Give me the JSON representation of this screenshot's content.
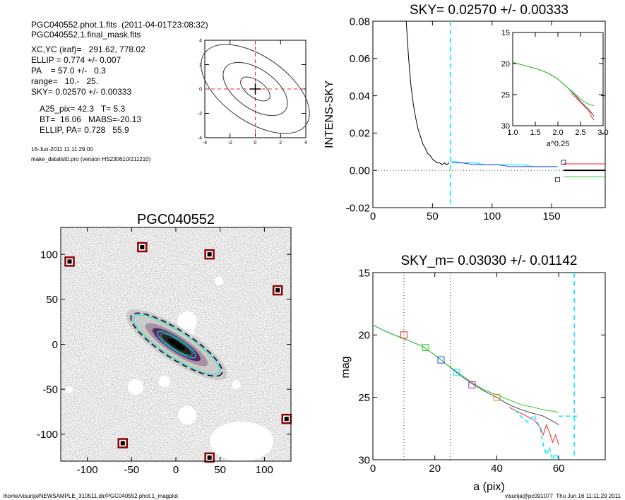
{
  "info": {
    "line1": "PGC040552.phot.1.fits  (2011-04-01T23:08:32)",
    "line2": "PGC040552.1.final_mask.fits",
    "line3": "XC,YC (iraf)=   291.62, 778.02",
    "line4": "ELLIP = 0.774 +/- 0.007",
    "line5": "PA    = 57.0 +/-   0.3",
    "line6": "range=   10.-   25.",
    "line7": "SKY= 0.02570 +/- 0.00333",
    "line8": "A25_pix= 42.3   T= 5.3",
    "line9": "BT=  16.06   MABS=-20.13",
    "line10": "ELLIP, PA= 0.728   55.9",
    "date": "16-Jun-2011 11:11:29.00",
    "program": "make_datalist0.pro (version HS230610/211210)"
  },
  "footer": {
    "left": "/home/visurija/NEWSAMPLE_310511.dir/PGC040552.phot.1_magplot",
    "right": "visurija@pc091077  Thu Jun 16 11:11:29 2011"
  },
  "colors": {
    "cyan": "#00e5ff",
    "red": "#ff2020",
    "green": "#22cc22",
    "blue": "#2244ff",
    "gray": "#444444",
    "dark_red": "#8b0000"
  },
  "chart_data": [
    {
      "type": "line",
      "id": "sky_profile",
      "title": "SKY= 0.02570 +/- 0.00333",
      "xlabel": "",
      "ylabel": "INTENS-SKY",
      "xlim": [
        0,
        195
      ],
      "ylim": [
        -0.02,
        0.08
      ],
      "xticks": [
        "0",
        "50",
        "100",
        "150"
      ],
      "yticks": [
        "-0.02",
        "0.00",
        "0.02",
        "0.04",
        "0.06",
        "0.08"
      ],
      "vline_cyan_x": 65,
      "series": [
        {
          "color": "black",
          "x": [
            28,
            30,
            32,
            34,
            36,
            38,
            40,
            42,
            44,
            46,
            48,
            50,
            52,
            54,
            56,
            58,
            60,
            62,
            64
          ],
          "y": [
            0.08,
            0.06,
            0.045,
            0.035,
            0.028,
            0.022,
            0.018,
            0.014,
            0.012,
            0.009,
            0.008,
            0.006,
            0.005,
            0.004,
            0.004,
            0.003,
            0.004,
            0.003,
            0.004
          ]
        },
        {
          "color": "cyan",
          "x": [
            66,
            75,
            85,
            95,
            105,
            115,
            125,
            135,
            145,
            155
          ],
          "y": [
            0.005,
            0.004,
            0.004,
            0.003,
            0.003,
            0.003,
            0.003,
            0.002,
            0.002,
            0.002
          ]
        },
        {
          "color": "blue",
          "x": [
            66,
            75,
            85,
            95,
            105,
            115,
            125,
            135,
            145,
            155
          ],
          "y": [
            0.004,
            0.004,
            0.003,
            0.003,
            0.003,
            0.002,
            0.002,
            0.002,
            0.002,
            0.002
          ]
        },
        {
          "color": "red",
          "x": [
            160,
            195
          ],
          "y": [
            0.0035,
            0.0035
          ]
        },
        {
          "color": "black",
          "x": [
            160,
            195
          ],
          "y": [
            0.0,
            0.0
          ]
        },
        {
          "color": "green",
          "x": [
            160,
            195
          ],
          "y": [
            -0.0035,
            -0.0035
          ]
        }
      ],
      "markers": [
        {
          "x": 160,
          "y": 0.0043
        },
        {
          "x": 155,
          "y": -0.005
        }
      ]
    },
    {
      "type": "line",
      "id": "inset_profile",
      "title": "",
      "xlabel": "a^0.25",
      "ylabel": "",
      "xlim": [
        1.0,
        3.0
      ],
      "ylim": [
        15,
        30
      ],
      "y_inverted": true,
      "xticks": [
        "1.0",
        "1.5",
        "2.0",
        "2.5",
        "3.0"
      ],
      "yticks": [
        "15",
        "20",
        "25",
        "30"
      ],
      "series": [
        {
          "color": "gray",
          "x": [
            1.0,
            1.2,
            1.4,
            1.6,
            1.8,
            2.0,
            2.2,
            2.4,
            2.5,
            2.6,
            2.7,
            2.75,
            2.8
          ],
          "y": [
            19.8,
            20.2,
            20.6,
            21.0,
            21.6,
            22.5,
            23.8,
            25.2,
            26.1,
            26.8,
            27.5,
            28.0,
            28.5
          ]
        },
        {
          "color": "red",
          "x": [
            2.3,
            2.4,
            2.5,
            2.6,
            2.7,
            2.75,
            2.8
          ],
          "y": [
            24.8,
            25.5,
            26.2,
            27.0,
            27.8,
            28.6,
            29.1
          ]
        },
        {
          "color": "green",
          "x": [
            1.0,
            1.2,
            1.4,
            1.6,
            1.8,
            2.0,
            2.2,
            2.4,
            2.5,
            2.6,
            2.7,
            2.8
          ],
          "y": [
            19.8,
            20.2,
            20.6,
            21.0,
            21.6,
            22.5,
            23.8,
            25.0,
            25.7,
            26.2,
            26.6,
            26.8
          ]
        }
      ]
    },
    {
      "type": "line",
      "id": "mag_profile",
      "title": "SKY_m=  0.03030 +/- 0.01142",
      "xlabel": "a (pix)",
      "ylabel": "mag",
      "xlim": [
        0,
        75
      ],
      "ylim": [
        15,
        30
      ],
      "y_inverted": true,
      "xticks": [
        "0",
        "20",
        "40",
        "60"
      ],
      "yticks": [
        "15",
        "20",
        "25",
        "30"
      ],
      "vlines_dotted_x": [
        10,
        25
      ],
      "vline_cyan_x": 65,
      "series": [
        {
          "color": "gray",
          "x": [
            0,
            4,
            8,
            12,
            16,
            20,
            24,
            28,
            32,
            36,
            40,
            44,
            48,
            52,
            55,
            58,
            60
          ],
          "y": [
            19.2,
            19.7,
            20.1,
            20.5,
            20.9,
            21.6,
            22.4,
            23.2,
            23.9,
            24.5,
            25.0,
            25.6,
            26.0,
            26.3,
            26.5,
            26.9,
            27.2
          ]
        },
        {
          "color": "green",
          "x": [
            0,
            4,
            8,
            12,
            16,
            20,
            24,
            28,
            32,
            36,
            40,
            44,
            48,
            52,
            55,
            58,
            60
          ],
          "y": [
            19.2,
            19.7,
            20.1,
            20.5,
            20.9,
            21.6,
            22.4,
            23.1,
            23.8,
            24.4,
            24.8,
            25.2,
            25.6,
            25.8,
            26.0,
            26.1,
            26.2
          ]
        },
        {
          "color": "red",
          "x": [
            44,
            48,
            52,
            54,
            55,
            56,
            57,
            58,
            59,
            60
          ],
          "y": [
            25.8,
            26.3,
            26.8,
            27.4,
            28.0,
            27.2,
            27.8,
            28.6,
            28.0,
            28.8
          ]
        },
        {
          "color": "cyan",
          "x": [
            46,
            48,
            50,
            52,
            54,
            55,
            56,
            57,
            58,
            59,
            60
          ],
          "y": [
            26.0,
            26.6,
            27.0,
            26.4,
            27.5,
            28.8,
            29.6,
            29.0,
            30.0,
            29.5,
            30.0
          ]
        },
        {
          "color": "cyan",
          "x": [
            60,
            66
          ],
          "y": [
            26.5,
            26.5
          ]
        }
      ],
      "markers": [
        {
          "x": 10,
          "y": 20.0,
          "color": "red"
        },
        {
          "x": 17,
          "y": 21.0,
          "color": "green"
        },
        {
          "x": 22,
          "y": 22.0,
          "color": "blue"
        },
        {
          "x": 27,
          "y": 23.0,
          "color": "cyan"
        },
        {
          "x": 32,
          "y": 24.0,
          "color": "purple"
        },
        {
          "x": 40,
          "y": 25.0,
          "color": "orange"
        }
      ]
    },
    {
      "type": "scatter",
      "id": "galaxy_image",
      "title": "PGC040552",
      "xlabel": "",
      "ylabel": "",
      "xlim": [
        -130,
        130
      ],
      "ylim": [
        -130,
        130
      ],
      "xticks": [
        "-100",
        "-50",
        "0",
        "50",
        "100"
      ],
      "yticks": [
        "-100",
        "-50",
        "0",
        "50",
        "100"
      ],
      "masked_stars": [
        {
          "x": -120,
          "y": 92
        },
        {
          "x": -38,
          "y": 108
        },
        {
          "x": 38,
          "y": 100
        },
        {
          "x": 115,
          "y": 60
        },
        {
          "x": 125,
          "y": -83
        },
        {
          "x": -60,
          "y": -110
        },
        {
          "x": 38,
          "y": -126
        }
      ]
    },
    {
      "type": "line",
      "id": "contour_plot",
      "title": "",
      "xlabel": "",
      "ylabel": "",
      "xlim": [
        -4,
        4
      ],
      "ylim": [
        -4,
        4
      ],
      "xticks": [
        "-4",
        "-2",
        "0",
        "2",
        "4"
      ],
      "yticks": [
        "-4",
        "-2",
        "0",
        "2",
        "4"
      ]
    }
  ]
}
